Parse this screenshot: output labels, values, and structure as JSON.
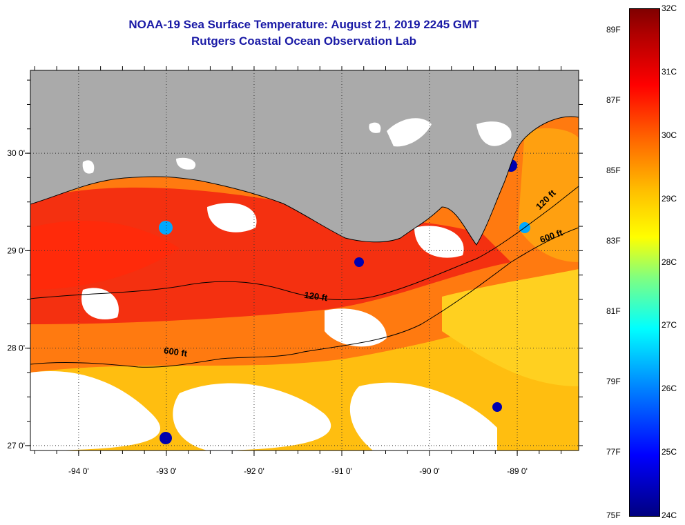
{
  "title": {
    "line1": "NOAA-19 Sea Surface Temperature:  August 21, 2019 2245 GMT",
    "line2": "Rutgers Coastal Ocean Observation Lab"
  },
  "map": {
    "lon_range": [
      -94.55,
      -88.3
    ],
    "lat_range": [
      26.95,
      30.85
    ],
    "lon_ticks": [
      {
        "value": -94,
        "label": "-94 0'"
      },
      {
        "value": -93,
        "label": "-93 0'"
      },
      {
        "value": -92,
        "label": "-92 0'"
      },
      {
        "value": -91,
        "label": "-91 0'"
      },
      {
        "value": -90,
        "label": "-90 0'"
      },
      {
        "value": -89,
        "label": "-89 0'"
      }
    ],
    "lat_ticks": [
      {
        "value": 30,
        "label": "30 0'"
      },
      {
        "value": 29,
        "label": "29 0'"
      },
      {
        "value": 28,
        "label": "28 0'"
      },
      {
        "value": 27,
        "label": "27 0'"
      }
    ],
    "contours": [
      {
        "label": "120 ft",
        "label_lon": -91.3,
        "label_lat": 28.5
      },
      {
        "label": "600 ft",
        "label_lon": -92.9,
        "label_lat": 27.93
      },
      {
        "label": "600 ft",
        "label_lon": -88.6,
        "label_lat": 29.12
      },
      {
        "label": "120 ft",
        "label_lon": -88.65,
        "label_lat": 29.5
      }
    ],
    "colors": {
      "land": "#aaaaaa",
      "cloud": "#ffffff",
      "sst_hot": "#ff3a10",
      "sst_warm": "#ff7a00",
      "sst_mild": "#ffcc00",
      "sst_cool": "#00a8ff",
      "sst_cold": "#0000b0"
    }
  },
  "colorbar": {
    "min_c": 24,
    "max_c": 32,
    "celsius_labels": [
      "32C",
      "31C",
      "30C",
      "29C",
      "28C",
      "27C",
      "26C",
      "25C",
      "24C"
    ],
    "fahrenheit_labels": [
      "89F",
      "87F",
      "85F",
      "83F",
      "81F",
      "79F",
      "77F",
      "75F"
    ]
  }
}
